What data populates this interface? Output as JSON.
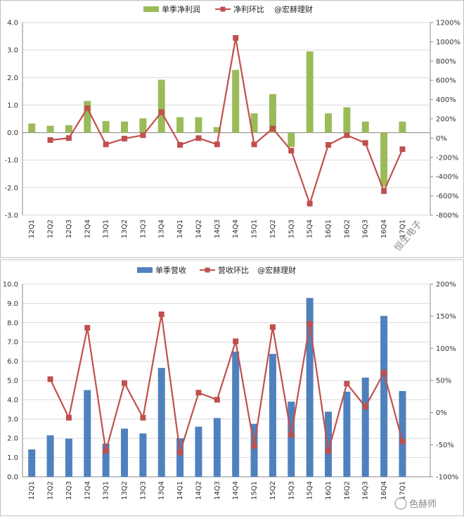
{
  "chart_data": [
    {
      "type": "bar+line",
      "categories": [
        "12Q1",
        "12Q2",
        "12Q3",
        "12Q4",
        "13Q1",
        "13Q2",
        "13Q3",
        "13Q4",
        "14Q1",
        "14Q2",
        "14Q3",
        "14Q4",
        "15Q1",
        "15Q2",
        "15Q3",
        "15Q4",
        "16Q1",
        "16Q2",
        "16Q3",
        "16Q4",
        "17Q1"
      ],
      "series": [
        {
          "name": "单季净利润",
          "kind": "bar",
          "axis": "left",
          "color": "#9bbb59",
          "values": [
            0.33,
            0.25,
            0.27,
            1.15,
            0.42,
            0.4,
            0.52,
            1.92,
            0.56,
            0.56,
            0.2,
            2.28,
            0.7,
            1.4,
            -0.52,
            2.95,
            0.7,
            0.92,
            0.4,
            -1.95,
            0.4
          ]
        },
        {
          "name": "净利环比",
          "kind": "line",
          "axis": "right",
          "color": "#c0504d",
          "values": [
            null,
            -20,
            0,
            310,
            -65,
            -5,
            30,
            270,
            -70,
            0,
            -65,
            1040,
            -65,
            100,
            -130,
            -680,
            -70,
            30,
            -50,
            -550,
            -115
          ]
        }
      ],
      "annotation": "@宏赫理财",
      "overlay_text": "恒生电子",
      "left_ticks": [
        "4.0",
        "3.0",
        "2.0",
        "1.0",
        "0.0",
        "-1.0",
        "-2.0",
        "-3.0"
      ],
      "right_ticks": [
        "1200%",
        "1000%",
        "800%",
        "600%",
        "400%",
        "200%",
        "0%",
        "-200%",
        "-400%",
        "-600%",
        "-800%"
      ],
      "ylim_left": [
        -3,
        4
      ],
      "ylim_right": [
        -800,
        1200
      ]
    },
    {
      "type": "bar+line",
      "categories": [
        "12Q1",
        "12Q2",
        "12Q3",
        "12Q4",
        "13Q1",
        "13Q2",
        "13Q3",
        "13Q4",
        "14Q1",
        "14Q2",
        "14Q3",
        "14Q4",
        "15Q1",
        "15Q2",
        "15Q3",
        "15Q4",
        "16Q1",
        "16Q2",
        "16Q3",
        "16Q4",
        "17Q1"
      ],
      "series": [
        {
          "name": "单季营收",
          "kind": "bar",
          "axis": "left",
          "color": "#4f81bd",
          "values": [
            1.42,
            2.15,
            1.98,
            4.5,
            1.72,
            2.5,
            2.25,
            5.65,
            2.0,
            2.6,
            3.05,
            6.5,
            2.75,
            6.38,
            3.9,
            9.28,
            3.38,
            4.42,
            5.15,
            8.35,
            4.45
          ]
        },
        {
          "name": "营收环比",
          "kind": "line",
          "axis": "right",
          "color": "#c0504d",
          "values": [
            null,
            52,
            -8,
            132,
            -60,
            46,
            -8,
            153,
            -62,
            31,
            20,
            111,
            -52,
            133,
            -35,
            138,
            -60,
            45,
            9,
            62,
            -45
          ]
        }
      ],
      "annotation": "@宏赫理财",
      "watermark": "色赫师",
      "left_ticks": [
        "10.0",
        "9.0",
        "8.0",
        "7.0",
        "6.0",
        "5.0",
        "4.0",
        "3.0",
        "2.0",
        "1.0",
        "0.0"
      ],
      "right_ticks": [
        "200%",
        "150%",
        "100%",
        "50%",
        "0%",
        "-50%",
        "-100%"
      ],
      "ylim_left": [
        0,
        10
      ],
      "ylim_right": [
        -100,
        200
      ]
    }
  ]
}
